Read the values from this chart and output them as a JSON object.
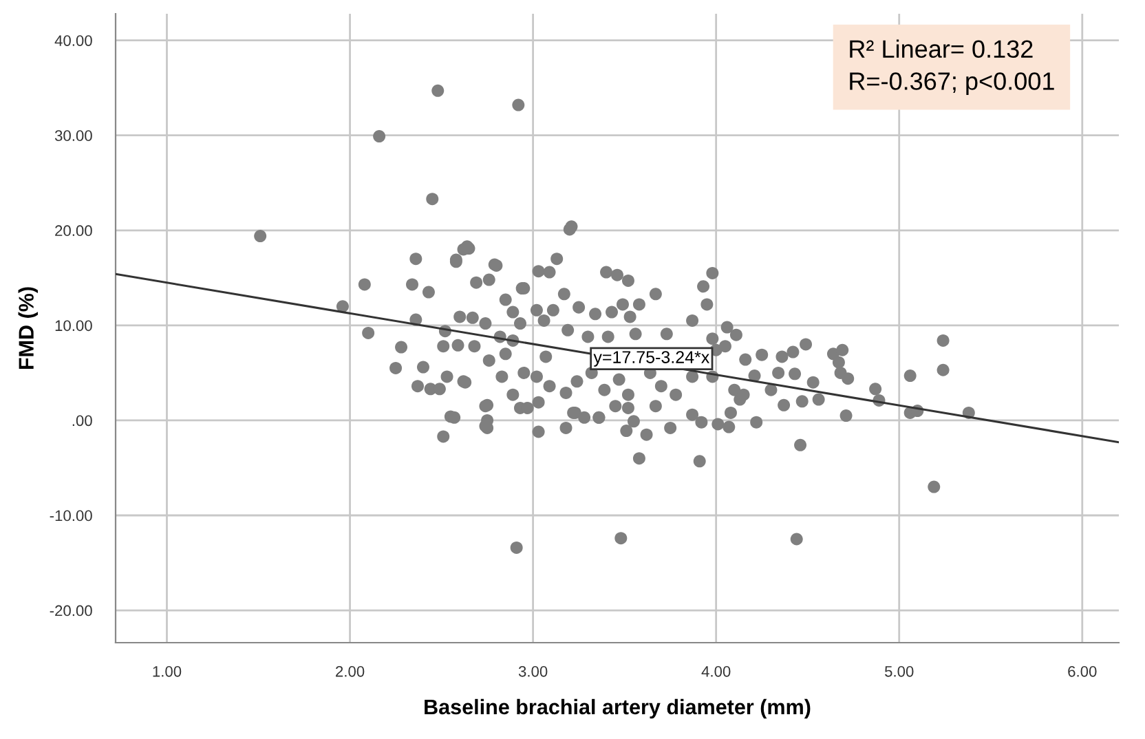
{
  "chart_data": {
    "type": "scatter",
    "xlabel": "Baseline brachial artery diameter (mm)",
    "ylabel": "FMD (%)",
    "xlim": [
      0.72,
      6.2
    ],
    "ylim": [
      -23.4,
      42.8
    ],
    "xticks": [
      {
        "value": 1,
        "label": "1.00"
      },
      {
        "value": 2,
        "label": "2.00"
      },
      {
        "value": 3,
        "label": "3.00"
      },
      {
        "value": 4,
        "label": "4.00"
      },
      {
        "value": 5,
        "label": "5.00"
      },
      {
        "value": 6,
        "label": "6.00"
      }
    ],
    "yticks": [
      {
        "value": -20,
        "label": "-20.00"
      },
      {
        "value": -10,
        "label": "-10.00"
      },
      {
        "value": 0,
        "label": ".00"
      },
      {
        "value": 10,
        "label": "10.00"
      },
      {
        "value": 20,
        "label": "20.00"
      },
      {
        "value": 30,
        "label": "30.00"
      },
      {
        "value": 40,
        "label": "40.00"
      }
    ],
    "grid": true,
    "series": [
      {
        "color": "#7f7f7f",
        "marker": "circle",
        "x": [
          1.51,
          1.96,
          2.08,
          2.1,
          2.16,
          2.45,
          2.48,
          2.92,
          2.36,
          2.34,
          2.43,
          2.36,
          2.58,
          2.62,
          2.65,
          2.8,
          3.13,
          3.03,
          3.2,
          3.21,
          3.4,
          3.52,
          3.67,
          2.94,
          2.52,
          2.28,
          2.25,
          2.4,
          2.37,
          2.44,
          2.49,
          2.53,
          2.51,
          2.63,
          2.55,
          2.51,
          2.75,
          2.75,
          2.75,
          3.03,
          3.18,
          3.58,
          2.91,
          3.48,
          2.93,
          3.23,
          3.36,
          3.51,
          3.75,
          3.09,
          3.46,
          3.98,
          3.93,
          3.95,
          3.58,
          2.79,
          2.64,
          2.58,
          2.69,
          2.76,
          2.85,
          2.95,
          2.89,
          3.02,
          3.11,
          3.17,
          3.25,
          3.34,
          3.43,
          3.49,
          3.53,
          2.67,
          2.6,
          2.74,
          2.93,
          3.06,
          3.19,
          3.3,
          3.41,
          3.56,
          3.73,
          3.87,
          4.06,
          4.11,
          3.98,
          2.59,
          2.68,
          2.85,
          2.89,
          2.76,
          2.83,
          2.62,
          2.95,
          3.07,
          3.02,
          3.09,
          3.18,
          3.24,
          3.32,
          3.39,
          3.47,
          3.52,
          3.45,
          3.52,
          2.89,
          2.97,
          3.03,
          3.22,
          3.28,
          3.36,
          2.74,
          2.74,
          2.57,
          3.55,
          3.62,
          3.67,
          3.7,
          3.78,
          3.87,
          3.92,
          4.01,
          4.07,
          4.08,
          4.13,
          4.1,
          4.22,
          3.87,
          3.98,
          4.0,
          4.05,
          4.16,
          4.25,
          4.36,
          4.42,
          4.49,
          4.34,
          4.43,
          4.53,
          4.64,
          4.69,
          4.67,
          4.68,
          4.72,
          4.87,
          4.89,
          5.06,
          5.24,
          5.24,
          5.06,
          5.1,
          5.38,
          4.71,
          4.56,
          4.47,
          4.46,
          5.19,
          4.44,
          4.37,
          3.91,
          4.15,
          4.3,
          4.21,
          3.64,
          2.82
        ],
        "values": [
          19.4,
          12.0,
          14.3,
          9.2,
          29.9,
          23.3,
          34.7,
          33.2,
          17.0,
          14.3,
          13.5,
          10.6,
          16.7,
          18.0,
          18.1,
          16.3,
          17.0,
          15.7,
          20.1,
          20.4,
          15.6,
          14.7,
          13.3,
          13.9,
          9.4,
          7.7,
          5.5,
          5.6,
          3.6,
          3.3,
          3.3,
          4.6,
          7.8,
          4.0,
          0.4,
          -1.7,
          1.6,
          0.0,
          -0.8,
          -1.2,
          -0.8,
          -4.0,
          -13.4,
          -12.4,
          1.3,
          0.8,
          0.3,
          -1.1,
          -0.8,
          15.6,
          15.3,
          15.5,
          14.1,
          12.2,
          12.2,
          16.4,
          18.3,
          16.9,
          14.5,
          14.8,
          12.7,
          13.9,
          11.4,
          11.6,
          11.6,
          13.3,
          11.9,
          11.2,
          11.4,
          12.2,
          10.9,
          10.8,
          10.9,
          10.2,
          10.2,
          10.5,
          9.5,
          8.8,
          8.8,
          9.1,
          9.1,
          10.5,
          9.8,
          9.0,
          8.6,
          7.9,
          7.8,
          7.0,
          8.4,
          6.3,
          4.6,
          4.1,
          5.0,
          6.7,
          4.6,
          3.6,
          2.9,
          4.1,
          5.0,
          3.2,
          4.3,
          2.7,
          1.5,
          1.3,
          2.7,
          1.3,
          1.9,
          0.8,
          0.3,
          0.3,
          -0.6,
          1.5,
          0.3,
          -0.1,
          -1.5,
          1.5,
          3.6,
          2.7,
          0.6,
          -0.2,
          -0.4,
          -0.7,
          0.8,
          2.2,
          3.2,
          -0.2,
          4.6,
          4.6,
          7.4,
          7.8,
          6.4,
          6.9,
          6.7,
          7.2,
          8.0,
          5.0,
          4.9,
          4.0,
          7.0,
          7.4,
          6.1,
          5.0,
          4.4,
          3.3,
          2.1,
          4.7,
          8.4,
          5.3,
          0.8,
          1.0,
          0.8,
          0.5,
          2.2,
          2.0,
          -2.6,
          -7.0,
          -12.5,
          1.6,
          -4.3,
          2.7,
          3.2,
          4.7,
          5.0,
          8.8
        ]
      },
      {
        "type": "line",
        "color": "#333333",
        "x": [
          0.72,
          6.2
        ],
        "values": [
          15.4,
          -2.3
        ]
      }
    ],
    "annotations": [
      {
        "text": "y=17.75-3.24*x",
        "x": 3.33,
        "y": 6.5
      },
      "R² Linear= 0.132",
      "R=-0.367; p<0.001"
    ]
  }
}
